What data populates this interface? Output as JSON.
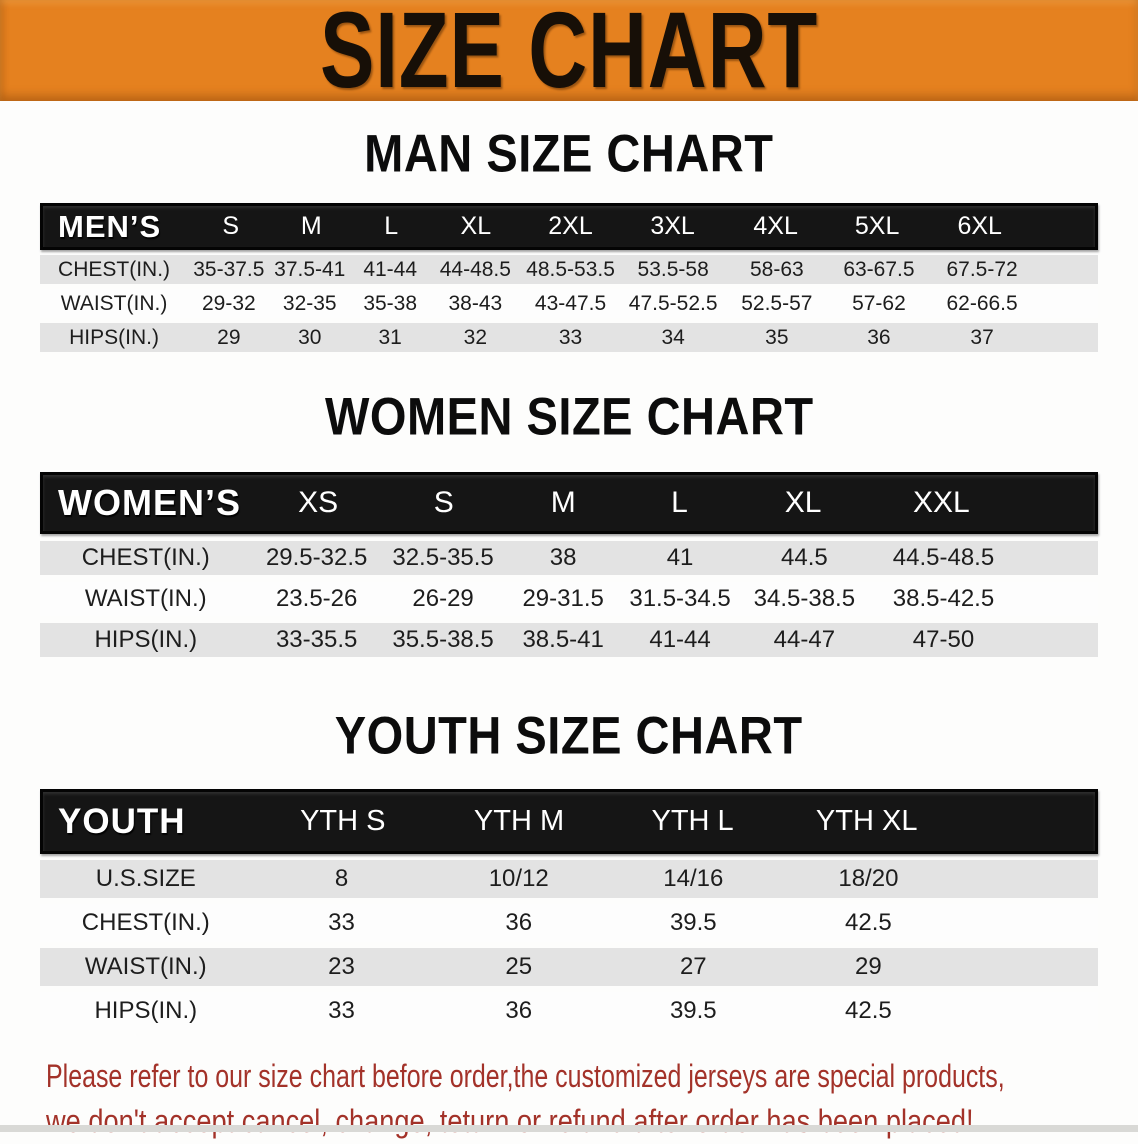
{
  "banner": {
    "title": "SIZE CHART",
    "bg_color": "#e5811f",
    "text_color": "#170f07"
  },
  "chart_data": [
    {
      "type": "table",
      "id": "men",
      "title": "MAN SIZE CHART",
      "header": {
        "label": "MEN’S",
        "columns": [
          "S",
          "M",
          "L",
          "XL",
          "2XL",
          "3XL",
          "4XL",
          "5XL",
          "6XL"
        ]
      },
      "rows": [
        {
          "label": "CHEST(IN.)",
          "values": [
            "35-37.5",
            "37.5-41",
            "41-44",
            "44-48.5",
            "48.5-53.5",
            "53.5-58",
            "58-63",
            "63-67.5",
            "67.5-72"
          ]
        },
        {
          "label": "WAIST(IN.)",
          "values": [
            "29-32",
            "32-35",
            "35-38",
            "38-43",
            "43-47.5",
            "47.5-52.5",
            "52.5-57",
            "57-62",
            "62-66.5"
          ]
        },
        {
          "label": "HIPS(IN.)",
          "values": [
            "29",
            "30",
            "31",
            "32",
            "33",
            "34",
            "35",
            "36",
            "37"
          ]
        }
      ]
    },
    {
      "type": "table",
      "id": "women",
      "title": "WOMEN SIZE CHART",
      "header": {
        "label": "WOMEN’S",
        "columns": [
          "XS",
          "S",
          "M",
          "L",
          "XL",
          "XXL"
        ]
      },
      "rows": [
        {
          "label": "CHEST(IN.)",
          "values": [
            "29.5-32.5",
            "32.5-35.5",
            "38",
            "41",
            "44.5",
            "44.5-48.5"
          ]
        },
        {
          "label": "WAIST(IN.)",
          "values": [
            "23.5-26",
            "26-29",
            "29-31.5",
            "31.5-34.5",
            "34.5-38.5",
            "38.5-42.5"
          ]
        },
        {
          "label": "HIPS(IN.)",
          "values": [
            "33-35.5",
            "35.5-38.5",
            "38.5-41",
            "41-44",
            "44-47",
            "47-50"
          ]
        }
      ]
    },
    {
      "type": "table",
      "id": "youth",
      "title": "YOUTH SIZE CHART",
      "header": {
        "label": "YOUTH",
        "columns": [
          "YTH S",
          "YTH M",
          "YTH L",
          "YTH XL"
        ]
      },
      "rows": [
        {
          "label": "U.S.SIZE",
          "values": [
            "8",
            "10/12",
            "14/16",
            "18/20"
          ]
        },
        {
          "label": "CHEST(IN.)",
          "values": [
            "33",
            "36",
            "39.5",
            "42.5"
          ]
        },
        {
          "label": "WAIST(IN.)",
          "values": [
            "23",
            "25",
            "27",
            "29"
          ]
        },
        {
          "label": "HIPS(IN.)",
          "values": [
            "33",
            "36",
            "39.5",
            "42.5"
          ]
        }
      ]
    }
  ],
  "disclaimer": {
    "line1": "Please refer to our size chart before order,the customized jerseys are special products,",
    "line2": "we don't accept cancel, change, teturn or refund after order has been placed!",
    "text_color": "#a33229"
  },
  "colors": {
    "header_bar": "#151515",
    "row_alt_gray": "#e3e3e3",
    "row_white": "#fdfdfd"
  }
}
